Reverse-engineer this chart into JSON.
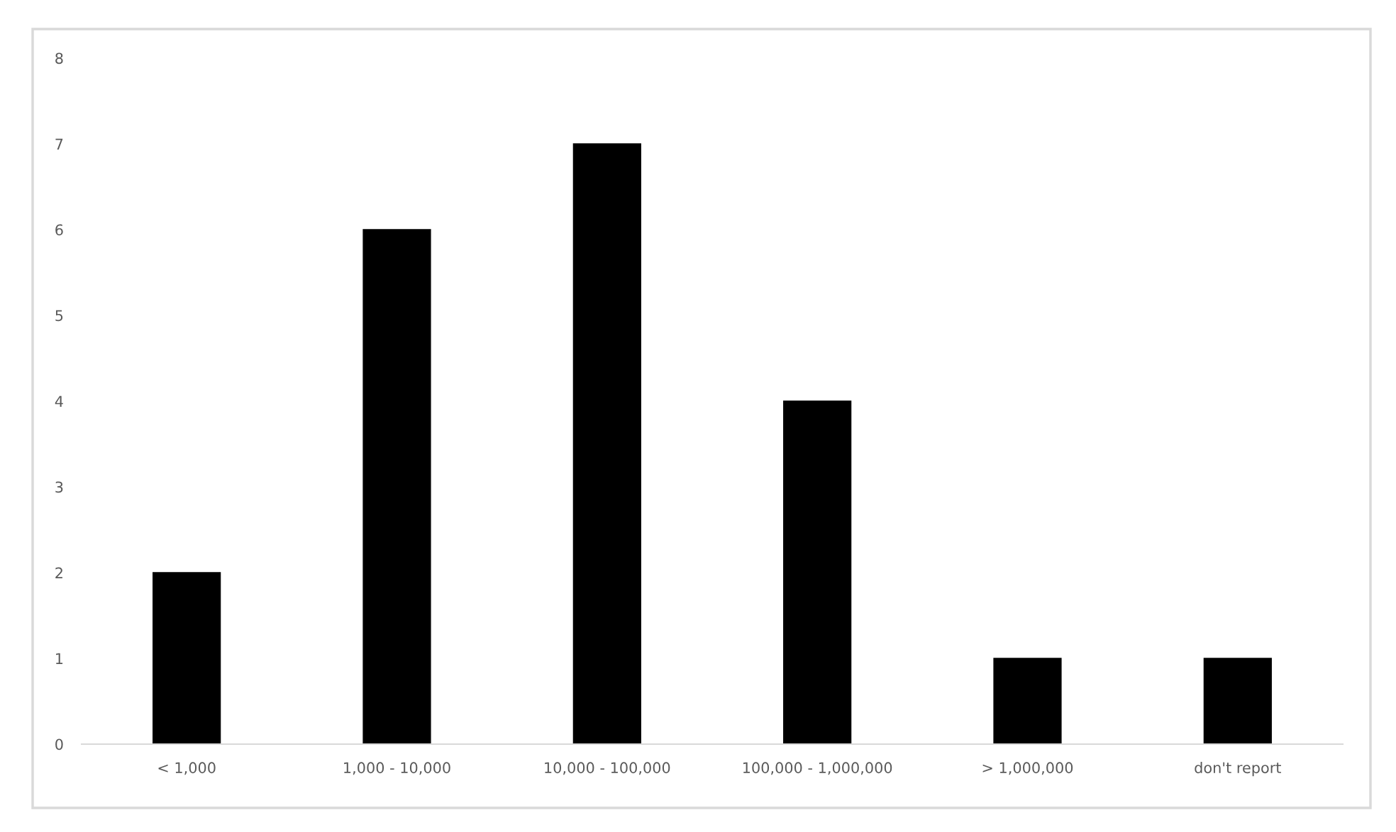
{
  "chart_data": {
    "type": "bar",
    "categories": [
      "< 1,000",
      "1,000 - 10,000",
      "10,000 - 100,000",
      "100,000 - 1,000,000",
      "> 1,000,000",
      "don't report"
    ],
    "values": [
      2,
      6,
      7,
      4,
      1,
      1
    ],
    "color": "#000000",
    "ylim": [
      0,
      8
    ],
    "yticks": [
      0,
      1,
      2,
      3,
      4,
      5,
      6,
      7,
      8
    ],
    "grid": false,
    "legend": false
  }
}
